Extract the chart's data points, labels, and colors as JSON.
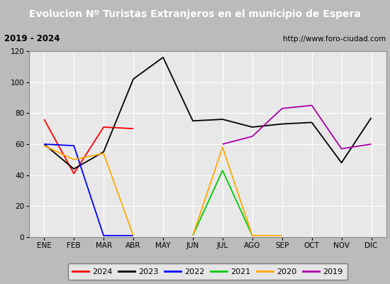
{
  "title": "Evolucion Nº Turistas Extranjeros en el municipio de Espera",
  "subtitle_left": "2019 - 2024",
  "subtitle_right": "http://www.foro-ciudad.com",
  "months": [
    "ENE",
    "FEB",
    "MAR",
    "ABR",
    "MAY",
    "JUN",
    "JUL",
    "AGO",
    "SEP",
    "OCT",
    "NOV",
    "DIC"
  ],
  "series": {
    "2024": {
      "color": "#ff0000",
      "data": [
        76,
        41,
        71,
        70,
        null,
        null,
        null,
        null,
        null,
        null,
        null,
        null
      ]
    },
    "2023": {
      "color": "#000000",
      "data": [
        60,
        44,
        55,
        102,
        116,
        75,
        76,
        71,
        73,
        74,
        48,
        77
      ]
    },
    "2022": {
      "color": "#0000ff",
      "data": [
        60,
        59,
        1,
        1,
        null,
        null,
        null,
        null,
        null,
        null,
        null,
        null
      ]
    },
    "2021": {
      "color": "#00cc00",
      "data": [
        null,
        null,
        null,
        null,
        null,
        1,
        43,
        1,
        null,
        null,
        null,
        null
      ]
    },
    "2020": {
      "color": "#ffaa00",
      "data": [
        59,
        50,
        54,
        1,
        null,
        1,
        58,
        1,
        1,
        null,
        null,
        null
      ]
    },
    "2019": {
      "color": "#aa00aa",
      "data": [
        null,
        null,
        null,
        null,
        null,
        null,
        60,
        65,
        83,
        85,
        57,
        60
      ]
    }
  },
  "ylim": [
    0,
    120
  ],
  "yticks": [
    0,
    20,
    40,
    60,
    80,
    100,
    120
  ],
  "title_bg": "#4477cc",
  "title_color": "#ffffff",
  "subtitle_bg": "#e8e8e8",
  "plot_bg": "#e8e8e8",
  "outer_bg": "#bbbbbb",
  "grid_color": "#ffffff",
  "legend_order": [
    "2024",
    "2023",
    "2022",
    "2021",
    "2020",
    "2019"
  ]
}
